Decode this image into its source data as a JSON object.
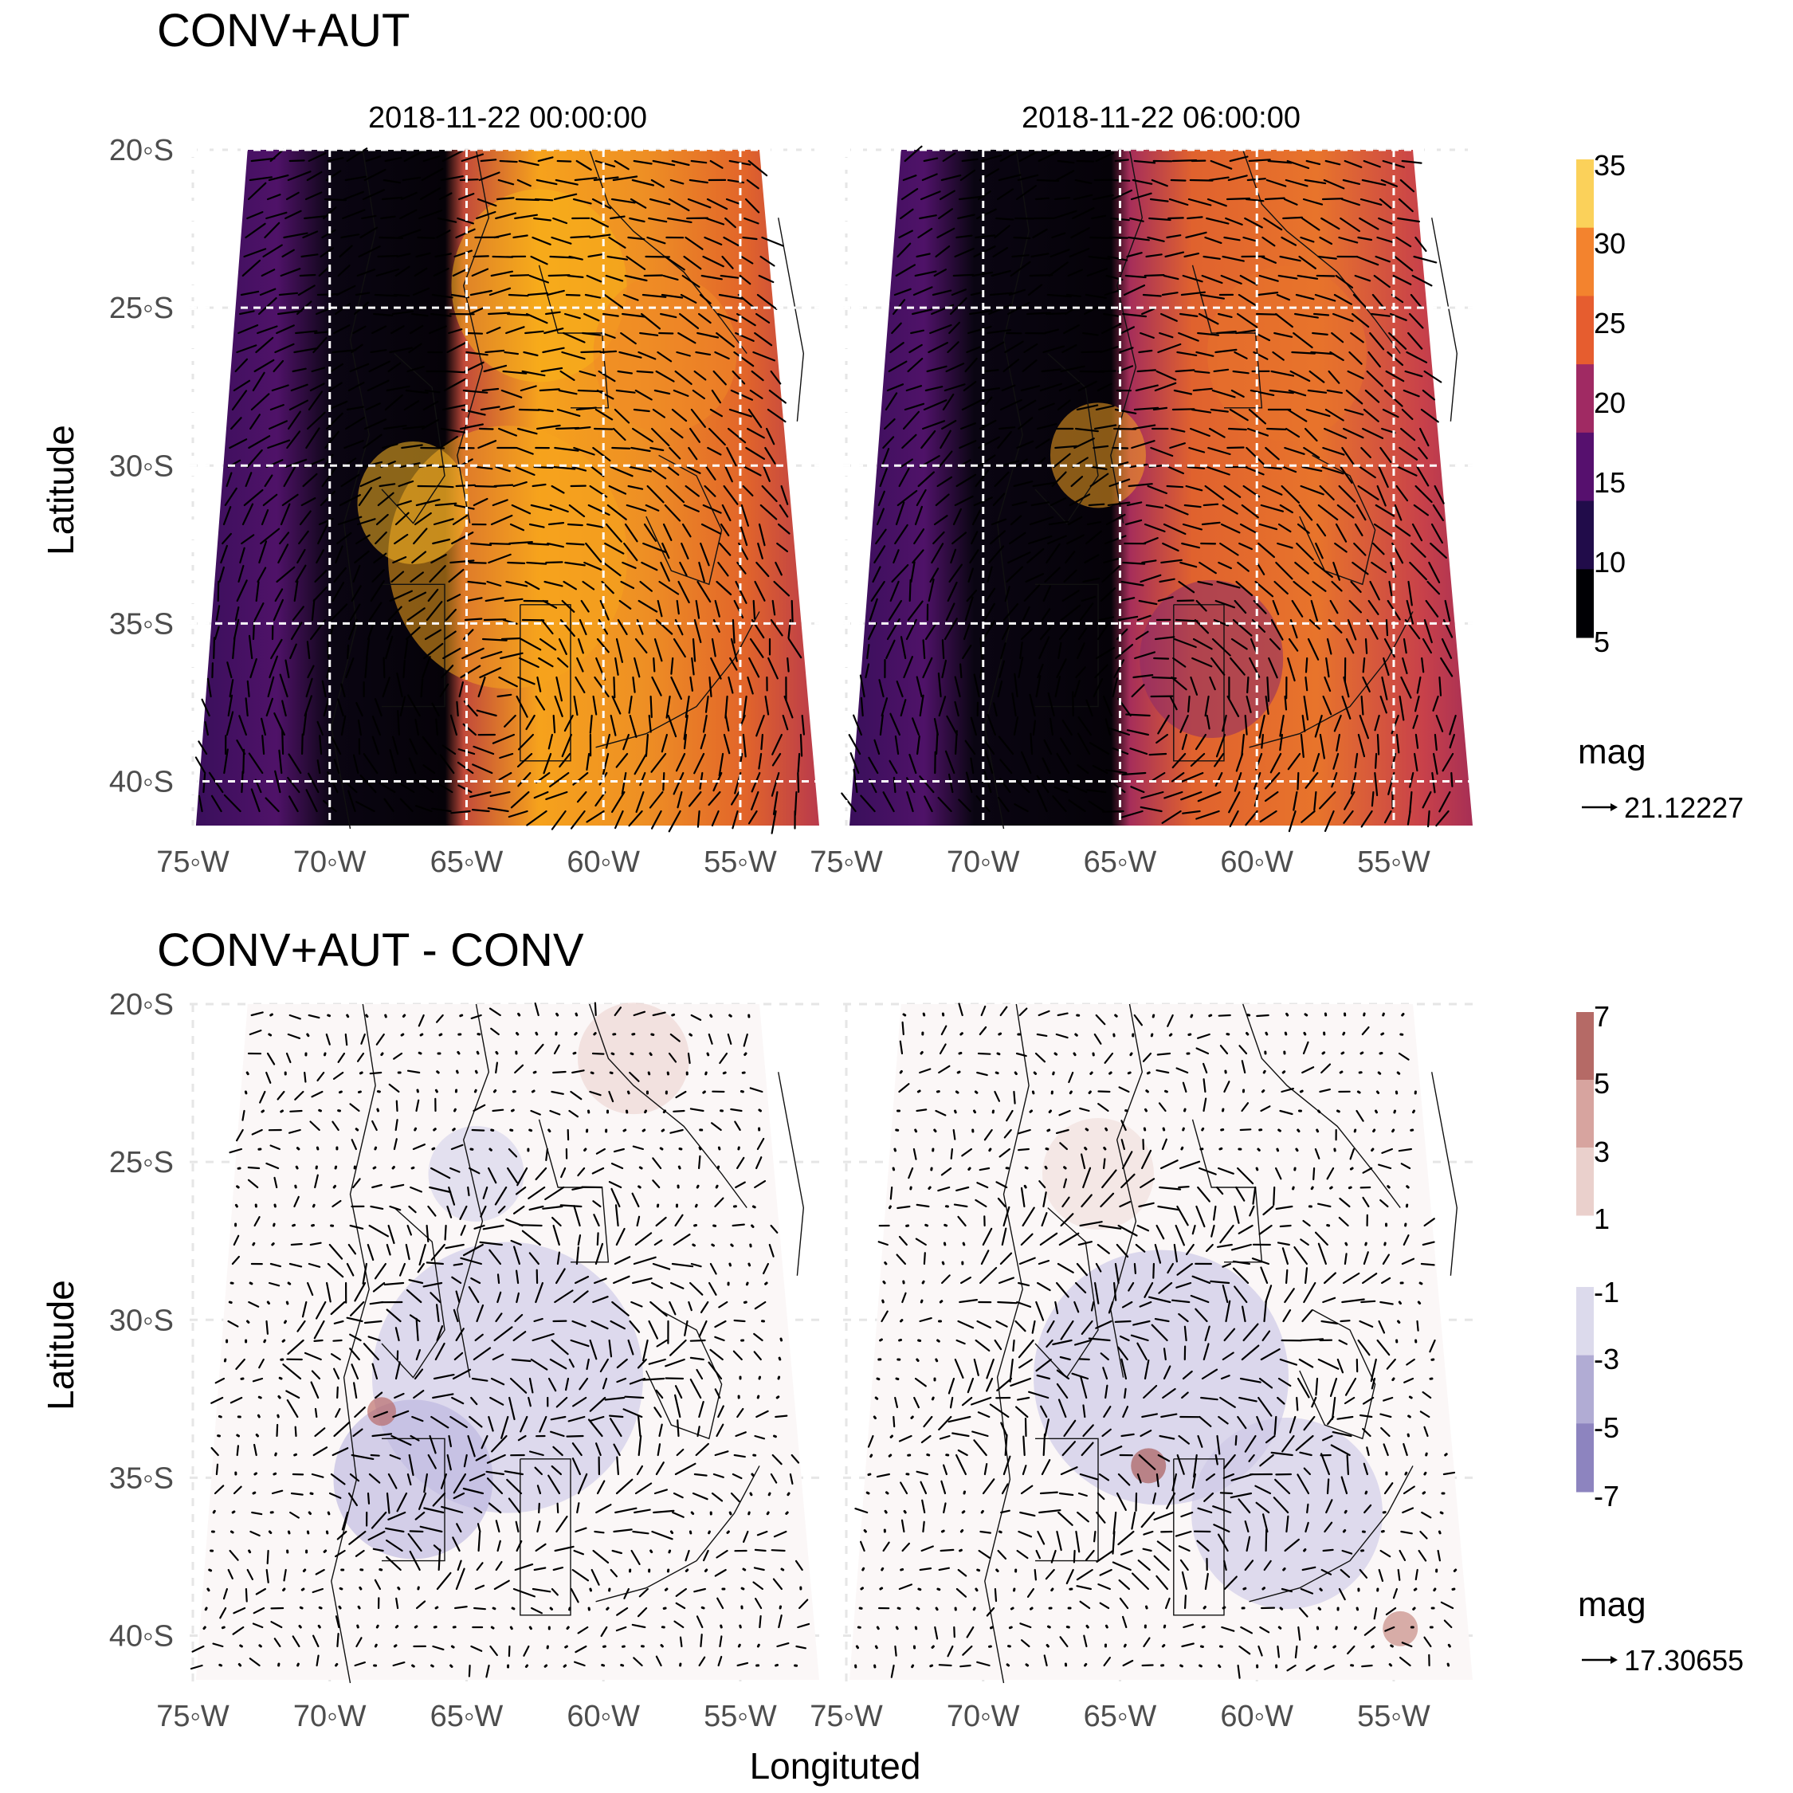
{
  "figure": {
    "ylabel": "Latitude",
    "xlabel": "Longituted"
  },
  "chart_data": [
    {
      "type": "heatmap",
      "title": "CONV+AUT",
      "facets": [
        "2018-11-22 00:00:00",
        "2018-11-22 06:00:00"
      ],
      "x_ticks": [
        "75◦W",
        "70◦W",
        "65◦W",
        "60◦W",
        "55◦W"
      ],
      "y_ticks": [
        "20◦S",
        "25◦S",
        "30◦S",
        "35◦S",
        "40◦S"
      ],
      "x_values": [
        -75,
        -70,
        -65,
        -60,
        -55
      ],
      "y_values": [
        -20,
        -25,
        -30,
        -35,
        -40
      ],
      "xlim": [
        -75,
        -52
      ],
      "ylim": [
        -41.5,
        -20
      ],
      "grid": true,
      "colorbar": {
        "breaks": [
          "5",
          "10",
          "15",
          "20",
          "25",
          "30",
          "35"
        ],
        "colors": [
          "#000004",
          "#210c4a",
          "#56106e",
          "#a02a63",
          "#e65d2f",
          "#f3832e",
          "#fbd15a"
        ]
      },
      "vector_legend": {
        "title": "mag",
        "value": "21.12227"
      }
    },
    {
      "type": "heatmap",
      "title": "CONV+AUT - CONV",
      "facets": [
        "2018-11-22 00:00:00",
        "2018-11-22 06:00:00"
      ],
      "x_ticks": [
        "75◦W",
        "70◦W",
        "65◦W",
        "60◦W",
        "55◦W"
      ],
      "y_ticks": [
        "20◦S",
        "25◦S",
        "30◦S",
        "35◦S",
        "40◦S"
      ],
      "x_values": [
        -75,
        -70,
        -65,
        -60,
        -55
      ],
      "y_values": [
        -20,
        -25,
        -30,
        -35,
        -40
      ],
      "xlim": [
        -75,
        -52
      ],
      "ylim": [
        -41.5,
        -20
      ],
      "grid": true,
      "colorbar_positive": {
        "breaks": [
          "1",
          "3",
          "5",
          "7"
        ],
        "colors": [
          "#ead0cc",
          "#d7a49f",
          "#b56a66"
        ]
      },
      "colorbar_negative": {
        "breaks": [
          "-1",
          "-3",
          "-5",
          "-7"
        ],
        "colors": [
          "#dcdaec",
          "#b1acd4",
          "#8d84bf"
        ]
      },
      "vector_legend": {
        "title": "mag",
        "value": "17.30655"
      }
    }
  ]
}
